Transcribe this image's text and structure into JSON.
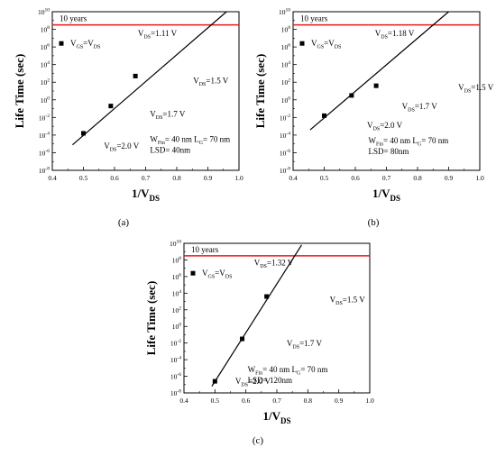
{
  "chart_data": [
    {
      "panel": "(a)",
      "type": "line",
      "ylabel": "Life Time (sec)",
      "xlabel": "1/V",
      "xlabel_sub": "DS",
      "xlim": [
        0.4,
        1.0
      ],
      "ylim_log10": [
        -8,
        10
      ],
      "x_ticks": [
        "0.4",
        "0.5",
        "0.6",
        "0.7",
        "0.8",
        "0.9",
        "1.0"
      ],
      "y_ticks": [
        -8,
        -6,
        -4,
        -2,
        0,
        2,
        4,
        6,
        8,
        10
      ],
      "legend": {
        "symbol": "square",
        "label": "V",
        "position": "top-left"
      },
      "ten_years_label": "10 years",
      "ten_years_log10": 8.5,
      "points": [
        {
          "x": 0.5,
          "log10y": -3.8,
          "label": "V",
          "label_sub": "DS",
          "label_tail": "=2.0 V"
        },
        {
          "x": 0.588,
          "log10y": -0.7,
          "label": "V",
          "label_sub": "DS",
          "label_tail": "=1.7 V"
        },
        {
          "x": 0.667,
          "log10y": 2.7,
          "label": "V",
          "label_sub": "DS",
          "label_tail": "=1.5 V"
        }
      ],
      "fit_line": {
        "x": [
          0.465,
          0.96
        ],
        "log10y": [
          -5.1,
          10.0
        ]
      },
      "crossing": {
        "text_pre": "V",
        "text_sub": "DS",
        "text_tail": "=1.11 V"
      },
      "device": {
        "line1_pre": "W",
        "line1_sub1": "Fin",
        "line1_mid": "= 40 nm L",
        "line1_sub2": "G",
        "line1_tail": "= 70 nm",
        "line2": "LSD= 40nm"
      }
    },
    {
      "panel": "(b)",
      "type": "line",
      "ylabel": "Life Time (sec)",
      "xlabel": "1/V",
      "xlabel_sub": "DS",
      "xlim": [
        0.4,
        1.0
      ],
      "ylim_log10": [
        -8,
        10
      ],
      "x_ticks": [
        "0.4",
        "0.5",
        "0.6",
        "0.7",
        "0.8",
        "0.9",
        "1.0"
      ],
      "y_ticks": [
        -8,
        -6,
        -4,
        -2,
        0,
        2,
        4,
        6,
        8,
        10
      ],
      "legend": {
        "symbol": "square",
        "label": "V",
        "position": "top-left"
      },
      "ten_years_label": "10 years",
      "ten_years_log10": 8.5,
      "points": [
        {
          "x": 0.5,
          "log10y": -1.8,
          "label": "V",
          "label_sub": "DS",
          "label_tail": "=2.0 V"
        },
        {
          "x": 0.588,
          "log10y": 0.5,
          "label": "V",
          "label_sub": "DS",
          "label_tail": "=1.7 V"
        },
        {
          "x": 0.667,
          "log10y": 1.6,
          "label": "V",
          "label_sub": "DS",
          "label_tail": "=1.5 V"
        }
      ],
      "fit_line": {
        "x": [
          0.455,
          0.9
        ],
        "log10y": [
          -3.4,
          10.0
        ]
      },
      "crossing": {
        "text_pre": "V",
        "text_sub": "DS",
        "text_tail": "=1.18 V"
      },
      "device": {
        "line1_pre": "W",
        "line1_sub1": "Fin",
        "line1_mid": "= 40 nm L",
        "line1_sub2": "G",
        "line1_tail": "= 70 nm",
        "line2": "LSD= 80nm"
      }
    },
    {
      "panel": "(c)",
      "type": "line",
      "ylabel": "Life Time (sec)",
      "xlabel": "1/V",
      "xlabel_sub": "DS",
      "xlim": [
        0.4,
        1.0
      ],
      "ylim_log10": [
        -8,
        10
      ],
      "x_ticks": [
        "0.4",
        "0.5",
        "0.6",
        "0.7",
        "0.8",
        "0.9",
        "1.0"
      ],
      "y_ticks": [
        -8,
        -6,
        -4,
        -2,
        0,
        2,
        4,
        6,
        8,
        10
      ],
      "legend": {
        "symbol": "square",
        "label": "V",
        "position": "top-left"
      },
      "ten_years_label": "10 years",
      "ten_years_log10": 8.5,
      "points": [
        {
          "x": 0.5,
          "log10y": -6.6,
          "label": "V",
          "label_sub": "DS",
          "label_tail": "=2.0 V"
        },
        {
          "x": 0.588,
          "log10y": -1.5,
          "label": "V",
          "label_sub": "DS",
          "label_tail": "=1.7 V"
        },
        {
          "x": 0.667,
          "log10y": 3.6,
          "label": "V",
          "label_sub": "DS",
          "label_tail": "=1.5 V"
        }
      ],
      "fit_line": {
        "x": [
          0.49,
          0.78
        ],
        "log10y": [
          -7.2,
          9.8
        ]
      },
      "crossing": {
        "text_pre": "V",
        "text_sub": "DS",
        "text_tail": "=1.32 V"
      },
      "device": {
        "line1_pre": "W",
        "line1_sub1": "Fin",
        "line1_mid": "= 40 nm L",
        "line1_sub2": "G",
        "line1_tail": "= 70 nm",
        "line2": "LSD= 120nm"
      }
    }
  ],
  "legend_text": {
    "pre": "V",
    "sub1": "GS",
    "mid": "=V",
    "sub2": "DS"
  },
  "colors": {
    "ten_years_line": "#e8191c",
    "axes": "#000000",
    "marker": "#000000"
  }
}
